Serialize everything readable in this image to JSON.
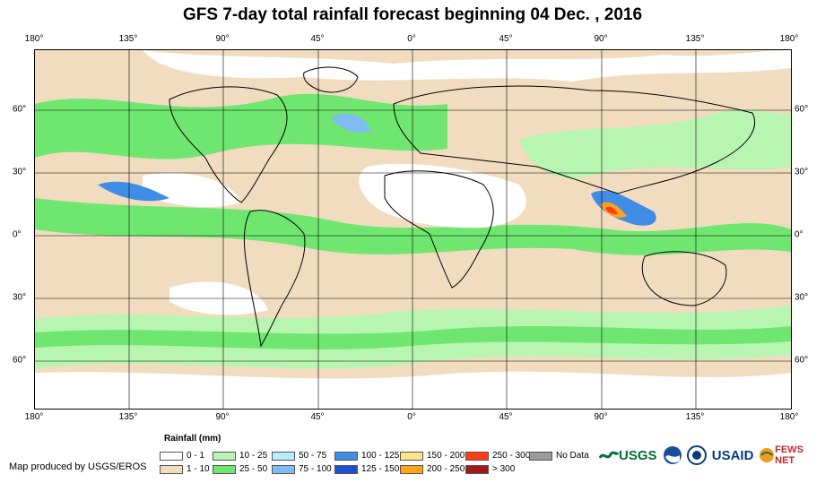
{
  "title": "GFS 7-day total rainfall forecast beginning 04 Dec. , 2016",
  "axes": {
    "longitude_labels": [
      "180°",
      "135°",
      "90°",
      "45°",
      "0°",
      "45°",
      "90°",
      "135°",
      "180°"
    ],
    "latitude_labels": [
      "60°",
      "30°",
      "0°",
      "30°",
      "60°"
    ]
  },
  "legend": {
    "title": "Rainfall (mm)",
    "items": [
      {
        "label": "0 - 1",
        "color": "#ffffff"
      },
      {
        "label": "1 - 10",
        "color": "#f1dcc0"
      },
      {
        "label": "10 - 25",
        "color": "#b8f5b0"
      },
      {
        "label": "25 - 50",
        "color": "#6fe66f"
      },
      {
        "label": "50 - 75",
        "color": "#b8ecff"
      },
      {
        "label": "75 - 100",
        "color": "#7fbcf2"
      },
      {
        "label": "100 - 125",
        "color": "#3f8de6"
      },
      {
        "label": "125 - 150",
        "color": "#1f4fd6"
      },
      {
        "label": "150 - 200",
        "color": "#ffe38a"
      },
      {
        "label": "200 - 250",
        "color": "#ffa31a"
      },
      {
        "label": "250 - 300",
        "color": "#ff3c14"
      },
      {
        "label": "> 300",
        "color": "#a31a1a"
      },
      {
        "label": "No Data",
        "color": "#9b9b9b"
      }
    ]
  },
  "credit": "Map produced by USGS/EROS",
  "logos": {
    "usgs": "USGS",
    "usaid": "USAID",
    "fews": "FEWS NET"
  }
}
